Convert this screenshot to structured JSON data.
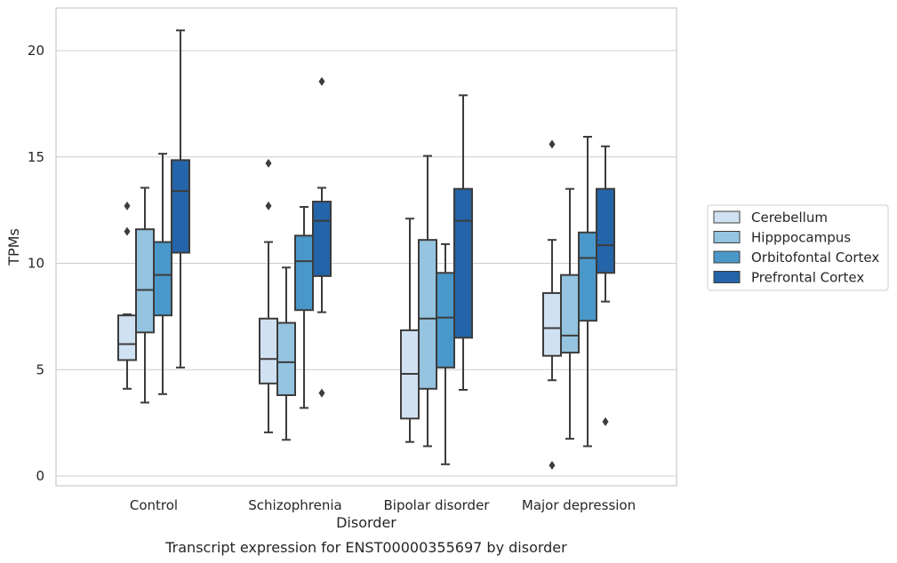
{
  "chart_data": {
    "type": "box",
    "caption": "Transcript expression for ENST00000355697 by disorder",
    "xlabel": "Disorder",
    "ylabel": "TPMs",
    "ylim": [
      -0.5,
      22
    ],
    "yticks": [
      0,
      5,
      10,
      15,
      20
    ],
    "grid": "horizontal",
    "legend_position": "right",
    "categories": [
      "Control",
      "Schizophrenia",
      "Bipolar disorder",
      "Major depression"
    ],
    "series": [
      {
        "name": "Cerebellum",
        "color": "#d0e1f2",
        "boxes": [
          {
            "whislo": 4.1,
            "q1": 5.45,
            "med": 6.2,
            "q3": 7.55,
            "whishi": 7.6,
            "fliers": [
              12.7,
              11.5
            ]
          },
          {
            "whislo": 2.05,
            "q1": 4.35,
            "med": 5.5,
            "q3": 7.4,
            "whishi": 11.0,
            "fliers": [
              14.7,
              12.7
            ]
          },
          {
            "whislo": 1.6,
            "q1": 2.7,
            "med": 4.8,
            "q3": 6.85,
            "whishi": 12.1,
            "fliers": []
          },
          {
            "whislo": 4.5,
            "q1": 5.65,
            "med": 6.95,
            "q3": 8.6,
            "whishi": 11.1,
            "fliers": [
              15.6,
              0.5
            ]
          }
        ]
      },
      {
        "name": "Hipppocampus",
        "color": "#94c4df",
        "boxes": [
          {
            "whislo": 3.45,
            "q1": 6.75,
            "med": 8.75,
            "q3": 11.6,
            "whishi": 13.55,
            "fliers": []
          },
          {
            "whislo": 1.7,
            "q1": 3.8,
            "med": 5.35,
            "q3": 7.2,
            "whishi": 9.8,
            "fliers": []
          },
          {
            "whislo": 1.4,
            "q1": 4.1,
            "med": 7.4,
            "q3": 11.1,
            "whishi": 15.05,
            "fliers": []
          },
          {
            "whislo": 1.75,
            "q1": 5.8,
            "med": 6.6,
            "q3": 9.45,
            "whishi": 13.5,
            "fliers": []
          }
        ]
      },
      {
        "name": "Orbitofontal Cortex",
        "color": "#4a98c9",
        "boxes": [
          {
            "whislo": 3.85,
            "q1": 7.55,
            "med": 9.45,
            "q3": 11.0,
            "whishi": 15.15,
            "fliers": []
          },
          {
            "whislo": 3.2,
            "q1": 7.8,
            "med": 10.1,
            "q3": 11.3,
            "whishi": 12.65,
            "fliers": []
          },
          {
            "whislo": 0.55,
            "q1": 5.1,
            "med": 7.45,
            "q3": 9.55,
            "whishi": 10.9,
            "fliers": []
          },
          {
            "whislo": 1.4,
            "q1": 7.3,
            "med": 10.25,
            "q3": 11.45,
            "whishi": 15.95,
            "fliers": []
          }
        ]
      },
      {
        "name": "Prefrontal Cortex",
        "color": "#2464a8",
        "boxes": [
          {
            "whislo": 5.1,
            "q1": 10.5,
            "med": 13.4,
            "q3": 14.85,
            "whishi": 20.95,
            "fliers": []
          },
          {
            "whislo": 7.7,
            "q1": 9.4,
            "med": 12.0,
            "q3": 12.9,
            "whishi": 13.55,
            "fliers": [
              18.55,
              3.9
            ]
          },
          {
            "whislo": 4.05,
            "q1": 6.5,
            "med": 12.0,
            "q3": 13.5,
            "whishi": 17.9,
            "fliers": []
          },
          {
            "whislo": 8.2,
            "q1": 9.55,
            "med": 10.85,
            "q3": 13.5,
            "whishi": 15.5,
            "fliers": [
              2.55
            ]
          }
        ]
      }
    ]
  }
}
